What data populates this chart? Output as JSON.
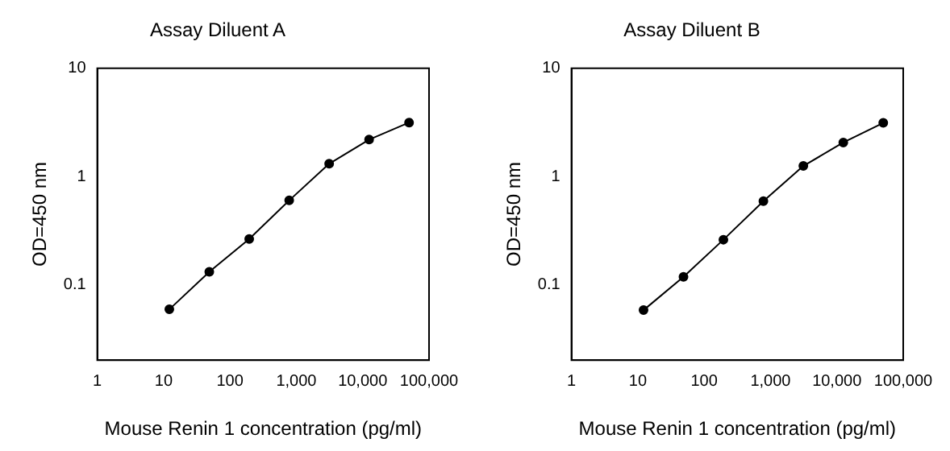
{
  "chart_data": [
    {
      "type": "line",
      "title": "Assay Diluent A",
      "xlabel": "Mouse Renin 1 concentration (pg/ml)",
      "ylabel": "OD=450 nm",
      "log": "xy",
      "marker": "circle",
      "grid": false,
      "legend": false,
      "x": [
        12.2,
        48.8,
        195,
        781,
        3125,
        12500,
        50000
      ],
      "series": [
        {
          "color": "#000000",
          "values": [
            0.059,
            0.131,
            0.264,
            0.6,
            1.31,
            2.19,
            3.15
          ]
        }
      ],
      "xlim": [
        1,
        100000
      ],
      "xticks": [
        1,
        10,
        100,
        {
          "value": 1000,
          "label": "1,000"
        },
        {
          "value": 10000,
          "label": "10,000"
        },
        {
          "value": 100000,
          "label": "100,000"
        }
      ],
      "ylim": [
        0.02,
        10
      ],
      "yticks": [
        0.1,
        1,
        10
      ]
    },
    {
      "type": "line",
      "title": "Assay Diluent B",
      "xlabel": "Mouse Renin 1 concentration (pg/ml)",
      "ylabel": "OD=450 nm",
      "log": "xy",
      "marker": "circle",
      "grid": false,
      "legend": false,
      "x": [
        12.2,
        48.8,
        195,
        781,
        3125,
        12500,
        50000
      ],
      "series": [
        {
          "color": "#000000",
          "values": [
            0.058,
            0.118,
            0.26,
            0.59,
            1.25,
            2.06,
            3.13
          ]
        }
      ],
      "xlim": [
        1,
        100000
      ],
      "xticks": [
        1,
        10,
        100,
        {
          "value": 1000,
          "label": "1,000"
        },
        {
          "value": 10000,
          "label": "10,000"
        },
        {
          "value": 100000,
          "label": "100,000"
        }
      ],
      "ylim": [
        0.02,
        10
      ],
      "yticks": [
        0.1,
        1,
        10
      ]
    }
  ]
}
